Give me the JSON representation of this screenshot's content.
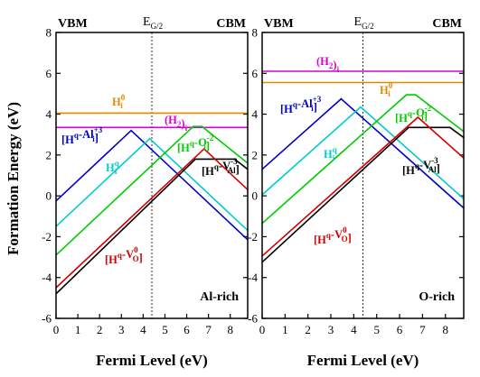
{
  "figure": {
    "ylabel": "Formation Energy (eV)",
    "edge_left": "VBM",
    "edge_right": "CBM",
    "gap_label": {
      "main": "E",
      "sub": "G/2"
    }
  },
  "colors": {
    "Hi0": "#e08a00",
    "H2i": "#d400d4",
    "HAl": "#0000c8",
    "Hi": "#00cccc",
    "HO": "#00cc00",
    "HV_Al": "#000000",
    "HV_O": "#d40000"
  },
  "chart_data": [
    {
      "type": "line",
      "panel": "Al-rich",
      "xlabel": "Fermi Level (eV)",
      "ylabel": "Formation Energy (eV)",
      "xlim": [
        0,
        8.8
      ],
      "ylim": [
        -6,
        8
      ],
      "xticks": [
        0,
        1,
        2,
        3,
        4,
        5,
        6,
        7,
        8
      ],
      "yticks": [
        -6,
        -4,
        -2,
        0,
        2,
        4,
        6,
        8
      ],
      "gap_half_x": 4.4,
      "series": [
        {
          "key": "Hi0",
          "label": "H",
          "sup": "0",
          "sub": "i",
          "x": [
            0,
            8.8
          ],
          "y": [
            4.05,
            4.05
          ]
        },
        {
          "key": "H2i",
          "label": "(H",
          "sub": "2",
          "tail": ")",
          "tailsub": "i",
          "x": [
            0,
            8.8
          ],
          "y": [
            3.35,
            3.35
          ]
        },
        {
          "key": "HAl",
          "label": "[H",
          "sup": "q",
          "mid": "-Al",
          "sub2": "i",
          "sup2": "+3",
          "tail": "]",
          "x": [
            0,
            3.45,
            8.8
          ],
          "y": [
            -0.25,
            3.2,
            -2.15
          ]
        },
        {
          "key": "Hi",
          "label": "H",
          "sup": "q",
          "sub": "i",
          "x": [
            0,
            4.3,
            8.8
          ],
          "y": [
            -1.5,
            2.8,
            -1.7
          ]
        },
        {
          "key": "HO",
          "label": "[H",
          "sup": "q",
          "mid": "-O",
          "sub2": "i",
          "sup2": "-2",
          "tail": "]",
          "x": [
            0,
            6.3,
            6.7,
            8.8
          ],
          "y": [
            -2.9,
            3.4,
            3.4,
            1.6
          ]
        },
        {
          "key": "HV_Al",
          "label": "[H",
          "sup": "q",
          "mid": "-V",
          "sub2": "Al",
          "sup2": "-3",
          "tail": "]",
          "x": [
            0,
            6.4,
            8.2,
            8.8
          ],
          "y": [
            -4.8,
            1.8,
            1.8,
            1.3
          ]
        },
        {
          "key": "HV_O",
          "label": "[H",
          "sup": "q",
          "mid": "-V",
          "sub2": "O",
          "sup2": "0",
          "tail": "]",
          "x": [
            0,
            6.8,
            8.8
          ],
          "y": [
            -4.5,
            2.3,
            0.3
          ]
        }
      ]
    },
    {
      "type": "line",
      "panel": "O-rich",
      "xlabel": "Fermi Level (eV)",
      "ylabel": "",
      "xlim": [
        0,
        8.8
      ],
      "ylim": [
        -6,
        8
      ],
      "xticks": [
        0,
        1,
        2,
        3,
        4,
        5,
        6,
        7,
        8
      ],
      "yticks": [
        -6,
        -4,
        -2,
        0,
        2,
        4,
        6,
        8
      ],
      "gap_half_x": 4.4,
      "series": [
        {
          "key": "H2i",
          "label": "(H",
          "sub": "2",
          "tail": ")",
          "tailsub": "i",
          "x": [
            0,
            8.8
          ],
          "y": [
            6.1,
            6.1
          ]
        },
        {
          "key": "Hi0",
          "label": "H",
          "sup": "0",
          "sub": "i",
          "x": [
            0,
            8.8
          ],
          "y": [
            5.55,
            5.55
          ]
        },
        {
          "key": "HAl",
          "label": "[H",
          "sup": "q",
          "mid": "-Al",
          "sub2": "i",
          "sup2": "+3",
          "tail": "]",
          "x": [
            0,
            3.45,
            8.8
          ],
          "y": [
            1.3,
            4.75,
            -0.6
          ]
        },
        {
          "key": "Hi",
          "label": "H",
          "sup": "q",
          "sub": "i",
          "x": [
            0,
            4.3,
            8.8
          ],
          "y": [
            0.05,
            4.35,
            -0.15
          ]
        },
        {
          "key": "HO",
          "label": "[H",
          "sup": "q",
          "mid": "-O",
          "sub2": "i",
          "sup2": "-2",
          "tail": "]",
          "x": [
            0,
            6.3,
            6.7,
            8.8
          ],
          "y": [
            -1.35,
            4.95,
            4.95,
            3.15
          ]
        },
        {
          "key": "HV_Al",
          "label": "[H",
          "sup": "q",
          "mid": "-V",
          "sub2": "Al",
          "sup2": "-3",
          "tail": "]",
          "x": [
            0,
            6.4,
            8.2,
            8.8
          ],
          "y": [
            -3.25,
            3.35,
            3.35,
            2.85
          ]
        },
        {
          "key": "HV_O",
          "label": "[H",
          "sup": "q",
          "mid": "-V",
          "sub2": "O",
          "sup2": "0",
          "tail": "]",
          "x": [
            0,
            6.8,
            8.8
          ],
          "y": [
            -2.95,
            3.85,
            1.85
          ]
        }
      ]
    }
  ]
}
